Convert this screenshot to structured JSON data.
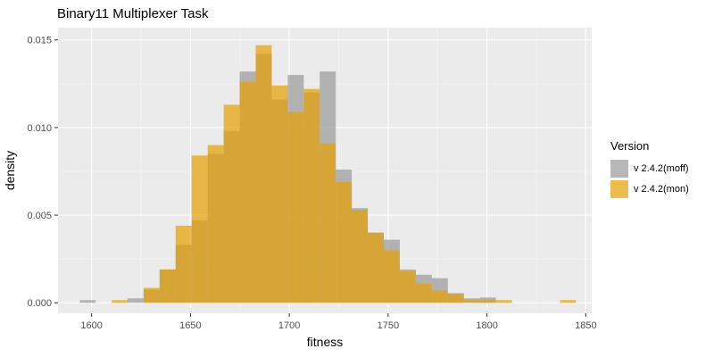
{
  "chart_data": {
    "type": "histogram",
    "title": "Binary11 Multiplexer Task",
    "xlabel": "fitness",
    "ylabel": "density",
    "xlim": [
      1583,
      1853
    ],
    "ylim": [
      -0.0006,
      0.0157
    ],
    "xticks": [
      1600,
      1650,
      1700,
      1750,
      1800,
      1850
    ],
    "yticks": [
      0.0,
      0.005,
      0.01,
      0.015
    ],
    "ytick_labels": [
      "0.000",
      "0.005",
      "0.010",
      "0.015"
    ],
    "bin_width": 8.1,
    "grid": true,
    "legend_title": "Version",
    "legend_position": "right",
    "series": [
      {
        "name": "v 2.4.2(moff)",
        "color": "#999999",
        "bins": [
          [
            1594.0,
            0.00015
          ],
          [
            1618.2,
            0.00025
          ],
          [
            1626.3,
            0.00075
          ],
          [
            1634.4,
            0.0019
          ],
          [
            1642.5,
            0.0033
          ],
          [
            1650.6,
            0.0047
          ],
          [
            1658.7,
            0.0085
          ],
          [
            1666.8,
            0.0098
          ],
          [
            1674.9,
            0.0132
          ],
          [
            1683.0,
            0.0142
          ],
          [
            1691.1,
            0.0116
          ],
          [
            1699.2,
            0.013
          ],
          [
            1707.3,
            0.012
          ],
          [
            1715.4,
            0.0132
          ],
          [
            1723.5,
            0.0076
          ],
          [
            1731.6,
            0.0054
          ],
          [
            1739.7,
            0.004
          ],
          [
            1747.8,
            0.0036
          ],
          [
            1755.9,
            0.0019
          ],
          [
            1764.0,
            0.0016
          ],
          [
            1772.1,
            0.0014
          ],
          [
            1780.2,
            0.00055
          ],
          [
            1788.3,
            0.00025
          ],
          [
            1796.4,
            0.0003
          ]
        ]
      },
      {
        "name": "v 2.4.2(mon)",
        "color": "#E69F00",
        "bins": [
          [
            1610.1,
            0.00015
          ],
          [
            1626.3,
            0.00085
          ],
          [
            1634.4,
            0.0019
          ],
          [
            1642.5,
            0.0044
          ],
          [
            1650.6,
            0.0084
          ],
          [
            1658.7,
            0.009
          ],
          [
            1666.8,
            0.0113
          ],
          [
            1674.9,
            0.0126
          ],
          [
            1683.0,
            0.0147
          ],
          [
            1691.1,
            0.0124
          ],
          [
            1699.2,
            0.0109
          ],
          [
            1707.3,
            0.0122
          ],
          [
            1715.4,
            0.0091
          ],
          [
            1723.5,
            0.0069
          ],
          [
            1731.6,
            0.0053
          ],
          [
            1739.7,
            0.004
          ],
          [
            1747.8,
            0.003
          ],
          [
            1755.9,
            0.0018
          ],
          [
            1764.0,
            0.0011
          ],
          [
            1772.1,
            0.0007
          ],
          [
            1780.2,
            0.0005
          ],
          [
            1788.3,
            0.00015
          ],
          [
            1796.4,
            0.00015
          ],
          [
            1804.5,
            0.00015
          ],
          [
            1836.9,
            0.00015
          ]
        ]
      }
    ],
    "series_opacity": 0.7
  }
}
